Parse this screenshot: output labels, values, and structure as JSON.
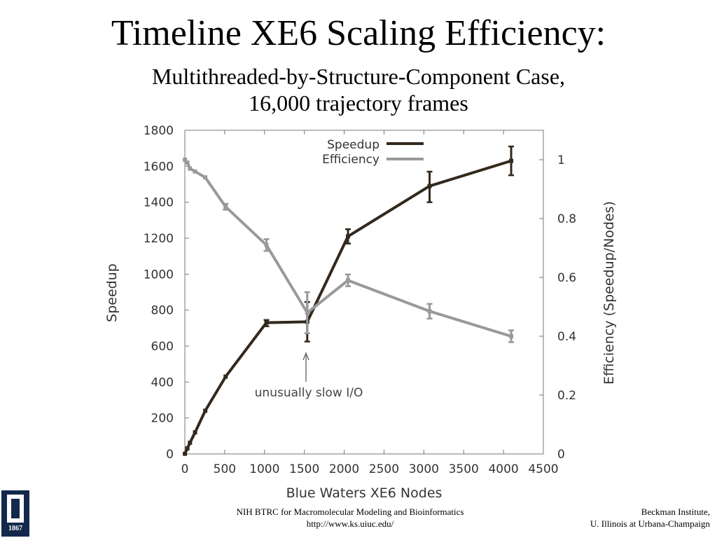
{
  "slide": {
    "title": "Timeline XE6 Scaling Efficiency:",
    "subtitle_line1": "Multithreaded-by-Structure-Component Case,",
    "subtitle_line2": "16,000 trajectory frames"
  },
  "footer": {
    "center_line1": "NIH BTRC for Macromolecular Modeling and Bioinformatics",
    "center_line2": "http://www.ks.uiuc.edu/",
    "right_line1": "Beckman Institute,",
    "right_line2": "U. Illinois at Urbana-Champaign",
    "logo_year": "1867"
  },
  "chart_data": {
    "type": "line",
    "xlabel": "Blue Waters XE6 Nodes",
    "ylabel": "Speedup",
    "y2label": "Efficiency (Speedup/Nodes)",
    "xlim": [
      0,
      4500
    ],
    "ylim": [
      0,
      1800
    ],
    "y2lim": [
      0,
      1.1
    ],
    "xticks": [
      0,
      500,
      1000,
      1500,
      2000,
      2500,
      3000,
      3500,
      4000,
      4500
    ],
    "yticks": [
      0,
      200,
      400,
      600,
      800,
      1000,
      1200,
      1400,
      1600,
      1800
    ],
    "y2ticks": [
      0,
      0.2,
      0.4,
      0.6,
      0.8,
      1
    ],
    "legend_position": "top",
    "grid": false,
    "annotation": {
      "text": "unusually slow I/O",
      "x": 1536,
      "y": 610
    },
    "series": [
      {
        "name": "Speedup",
        "axis": "left",
        "color": "#33281c",
        "x": [
          1,
          32,
          64,
          128,
          256,
          512,
          1024,
          1536,
          2048,
          3072,
          4096
        ],
        "y": [
          1,
          31,
          62,
          120,
          240,
          430,
          730,
          735,
          1210,
          1490,
          1630
        ],
        "err_low": [
          1,
          31,
          62,
          120,
          240,
          430,
          710,
          625,
          1170,
          1400,
          1550
        ],
        "err_high": [
          1,
          31,
          62,
          120,
          240,
          430,
          745,
          845,
          1250,
          1570,
          1710
        ]
      },
      {
        "name": "Efficiency",
        "axis": "right",
        "color": "#999999",
        "x": [
          1,
          32,
          64,
          128,
          256,
          512,
          1024,
          1536,
          2048,
          3072,
          4096
        ],
        "y": [
          1.0,
          0.99,
          0.97,
          0.96,
          0.94,
          0.84,
          0.71,
          0.48,
          0.59,
          0.485,
          0.4
        ],
        "err_low": [
          1.0,
          0.99,
          0.97,
          0.96,
          0.94,
          0.83,
          0.69,
          0.41,
          0.57,
          0.46,
          0.38
        ],
        "err_high": [
          1.0,
          0.99,
          0.97,
          0.96,
          0.94,
          0.85,
          0.73,
          0.55,
          0.61,
          0.51,
          0.42
        ]
      }
    ]
  }
}
